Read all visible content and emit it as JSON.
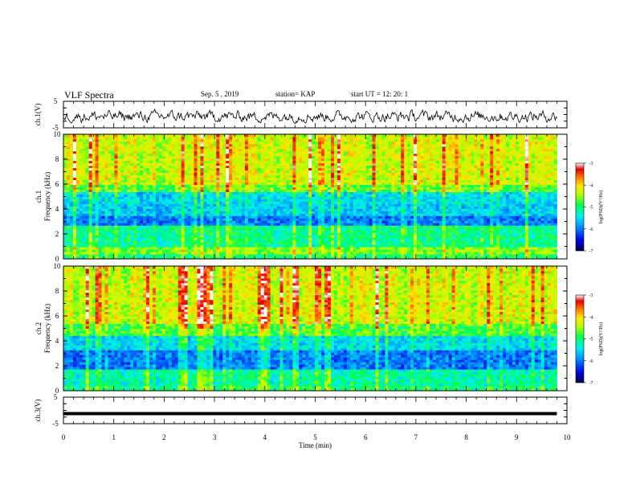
{
  "header": {
    "title": "VLF Spectra",
    "date": "Sep. 5 , 2019",
    "station": "station= KAP",
    "start_ut": "start UT =  12: 20: 1"
  },
  "chart_data": [
    {
      "type": "line",
      "panel": "ch1-waveform",
      "ylabel": "ch.1(V)",
      "ylim": [
        -5,
        5
      ],
      "yticks": [
        "5",
        "-5"
      ],
      "xlim": [
        0,
        10
      ],
      "x_extent_min": [
        0,
        9.8
      ],
      "description_of_signal": "noisy waveform oscillating roughly between -3 and 2 V"
    },
    {
      "type": "heatmap",
      "panel": "ch1-spectrogram",
      "ylabel": "ch.1 Frequency (kHz)",
      "ylim": [
        0,
        10
      ],
      "yticks": [
        "0",
        "2",
        "4",
        "6",
        "8",
        "10"
      ],
      "xlim": [
        0,
        10
      ],
      "x_extent_min": [
        0,
        9.8
      ],
      "colorbar": {
        "label": "log(PSD)(V²/Hz)",
        "range": [
          -7,
          -3
        ],
        "ticks": [
          "-3",
          "-4",
          "-5",
          "-6",
          "-7"
        ]
      },
      "bands": [
        {
          "from_khz": 0.0,
          "to_khz": 0.3,
          "level": -5.0
        },
        {
          "from_khz": 0.3,
          "to_khz": 1.0,
          "level": -4.6
        },
        {
          "from_khz": 1.0,
          "to_khz": 2.6,
          "level": -5.1
        },
        {
          "from_khz": 2.6,
          "to_khz": 3.5,
          "level": -6.0
        },
        {
          "from_khz": 3.5,
          "to_khz": 4.5,
          "level": -5.6
        },
        {
          "from_khz": 4.5,
          "to_khz": 5.4,
          "level": -5.5
        },
        {
          "from_khz": 5.4,
          "to_khz": 6.0,
          "level": -4.7
        },
        {
          "from_khz": 6.0,
          "to_khz": 10.0,
          "level": -4.3
        }
      ]
    },
    {
      "type": "heatmap",
      "panel": "ch2-spectrogram",
      "ylabel": "ch.2 Frequency (kHz)",
      "ylim": [
        0,
        10
      ],
      "yticks": [
        "0",
        "2",
        "4",
        "6",
        "8",
        "10"
      ],
      "xlim": [
        0,
        10
      ],
      "x_extent_min": [
        0,
        9.8
      ],
      "colorbar": {
        "label": "log(PSD)(V²/Hz)",
        "range": [
          -7,
          -3
        ],
        "ticks": [
          "-3",
          "-4",
          "-5",
          "-6",
          "-7"
        ]
      },
      "bands": [
        {
          "from_khz": 0.0,
          "to_khz": 0.3,
          "level": -5.0
        },
        {
          "from_khz": 0.3,
          "to_khz": 1.8,
          "level": -5.2
        },
        {
          "from_khz": 1.8,
          "to_khz": 3.2,
          "level": -6.0
        },
        {
          "from_khz": 3.2,
          "to_khz": 4.5,
          "level": -5.5
        },
        {
          "from_khz": 4.5,
          "to_khz": 5.3,
          "level": -4.8
        },
        {
          "from_khz": 5.3,
          "to_khz": 10.0,
          "level": -4.3
        }
      ]
    },
    {
      "type": "line",
      "panel": "ch3-waveform",
      "ylabel": "ch.3(V)",
      "ylim": [
        -5,
        5
      ],
      "yticks": [
        "5",
        "-5"
      ],
      "xlim": [
        0,
        10
      ],
      "x_extent_min": [
        0,
        9.8
      ],
      "constant_value": -1.2,
      "xlabel": "Time (min)",
      "xticks": [
        "0",
        "1",
        "2",
        "3",
        "4",
        "5",
        "6",
        "7",
        "8",
        "9",
        "10"
      ]
    }
  ],
  "colors": {
    "frame": "#000000",
    "colormap": [
      "#0000c8",
      "#0064ff",
      "#00d2ff",
      "#00ff96",
      "#7dff00",
      "#e6ff00",
      "#ffb400",
      "#ff3c00",
      "#e60000"
    ]
  }
}
